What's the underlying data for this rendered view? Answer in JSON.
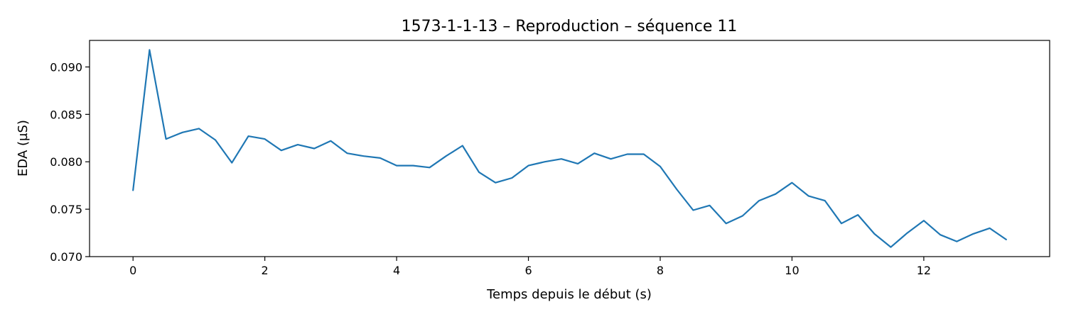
{
  "chart_data": {
    "type": "line",
    "title": "1573-1-1-13 – Reproduction – séquence 11",
    "xlabel": "Temps depuis le début (s)",
    "ylabel": "EDA (µS)",
    "xlim": [
      -0.66,
      13.91
    ],
    "ylim": [
      0.07,
      0.0928
    ],
    "x_ticks": [
      0,
      2,
      4,
      6,
      8,
      10,
      12
    ],
    "x_tick_labels": [
      "0",
      "2",
      "4",
      "6",
      "8",
      "10",
      "12"
    ],
    "y_ticks": [
      0.07,
      0.075,
      0.08,
      0.085,
      0.09
    ],
    "y_tick_labels": [
      "0.070",
      "0.075",
      "0.080",
      "0.085",
      "0.090"
    ],
    "grid": false,
    "colors": {
      "series": "#1f77b4"
    },
    "series": [
      {
        "x": [
          0,
          0.25,
          0.5,
          0.75,
          1,
          1.25,
          1.5,
          1.75,
          2,
          2.25,
          2.5,
          2.75,
          3,
          3.25,
          3.5,
          3.75,
          4,
          4.25,
          4.5,
          4.75,
          5,
          5.25,
          5.5,
          5.75,
          6,
          6.25,
          6.5,
          6.75,
          7,
          7.25,
          7.5,
          7.75,
          8,
          8.25,
          8.5,
          8.75,
          9,
          9.25,
          9.5,
          9.75,
          10,
          10.25,
          10.5,
          10.75,
          11,
          11.25,
          11.5,
          11.75,
          12,
          12.25,
          12.5,
          12.75,
          13,
          13.25
        ],
        "y": [
          0.077,
          0.0918,
          0.0824,
          0.0831,
          0.0835,
          0.0823,
          0.0799,
          0.0827,
          0.0824,
          0.0812,
          0.0818,
          0.0814,
          0.0822,
          0.0809,
          0.0806,
          0.0804,
          0.0796,
          0.0796,
          0.0794,
          0.0806,
          0.0817,
          0.0789,
          0.0778,
          0.0783,
          0.0796,
          0.08,
          0.0803,
          0.0798,
          0.0809,
          0.0803,
          0.0808,
          0.0808,
          0.0795,
          0.0771,
          0.0749,
          0.0754,
          0.0735,
          0.0743,
          0.0759,
          0.0766,
          0.0778,
          0.0764,
          0.0759,
          0.0735,
          0.0744,
          0.0724,
          0.071,
          0.0725,
          0.0738,
          0.0723,
          0.0716,
          0.0724,
          0.073,
          0.0718
        ]
      }
    ]
  }
}
